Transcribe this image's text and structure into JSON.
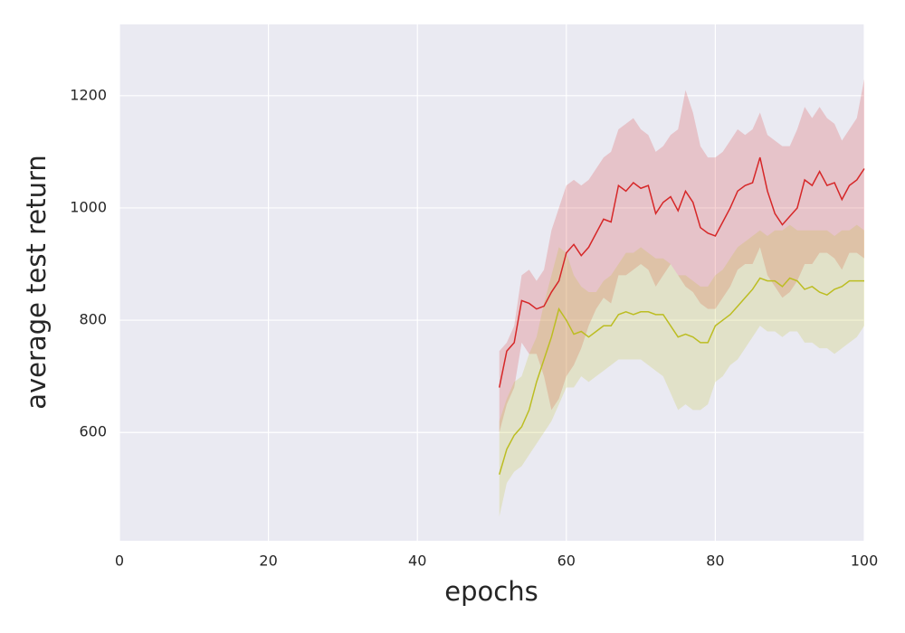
{
  "chart_data": {
    "type": "line",
    "xlabel": "epochs",
    "ylabel": "average test return",
    "x": [
      51,
      52,
      53,
      54,
      55,
      56,
      57,
      58,
      59,
      60,
      61,
      62,
      63,
      64,
      65,
      66,
      67,
      68,
      69,
      70,
      71,
      72,
      73,
      74,
      75,
      76,
      77,
      78,
      79,
      80,
      81,
      82,
      83,
      84,
      85,
      86,
      87,
      88,
      89,
      90,
      91,
      92,
      93,
      94,
      95,
      96,
      97,
      98,
      99,
      100
    ],
    "series": [
      {
        "color": "#d62728",
        "band_opacity": 0.2,
        "values": [
          680,
          745,
          760,
          835,
          830,
          820,
          825,
          850,
          870,
          920,
          935,
          915,
          930,
          955,
          980,
          975,
          1040,
          1030,
          1045,
          1035,
          1040,
          990,
          1010,
          1020,
          995,
          1030,
          1010,
          965,
          955,
          950,
          975,
          1000,
          1030,
          1040,
          1045,
          1090,
          1030,
          990,
          970,
          985,
          1000,
          1050,
          1040,
          1065,
          1040,
          1045,
          1015,
          1040,
          1050,
          1070
        ],
        "upper": [
          745,
          760,
          790,
          880,
          890,
          870,
          890,
          960,
          1000,
          1040,
          1050,
          1040,
          1050,
          1070,
          1090,
          1100,
          1140,
          1150,
          1160,
          1140,
          1130,
          1100,
          1110,
          1130,
          1140,
          1210,
          1170,
          1110,
          1090,
          1090,
          1100,
          1120,
          1140,
          1130,
          1140,
          1170,
          1130,
          1120,
          1110,
          1110,
          1140,
          1180,
          1160,
          1180,
          1160,
          1150,
          1120,
          1140,
          1160,
          1230
        ],
        "lower": [
          600,
          650,
          680,
          760,
          740,
          740,
          700,
          640,
          660,
          700,
          720,
          750,
          790,
          820,
          840,
          830,
          880,
          880,
          890,
          900,
          890,
          860,
          880,
          900,
          880,
          860,
          850,
          830,
          820,
          820,
          840,
          860,
          890,
          900,
          900,
          930,
          880,
          860,
          840,
          850,
          870,
          900,
          900,
          920,
          920,
          910,
          890,
          920,
          920,
          910
        ]
      },
      {
        "color": "#bcbd22",
        "band_opacity": 0.2,
        "values": [
          525,
          570,
          595,
          610,
          640,
          690,
          730,
          770,
          820,
          800,
          775,
          780,
          770,
          780,
          790,
          790,
          810,
          815,
          810,
          815,
          815,
          810,
          810,
          790,
          770,
          775,
          770,
          760,
          760,
          790,
          800,
          810,
          825,
          840,
          855,
          875,
          870,
          870,
          860,
          875,
          870,
          855,
          860,
          850,
          845,
          855,
          860,
          870,
          870,
          870
        ],
        "upper": [
          620,
          660,
          690,
          700,
          740,
          770,
          830,
          880,
          930,
          920,
          880,
          860,
          850,
          850,
          870,
          880,
          900,
          920,
          920,
          930,
          920,
          910,
          910,
          900,
          880,
          880,
          870,
          860,
          860,
          880,
          890,
          910,
          930,
          940,
          950,
          960,
          950,
          960,
          960,
          970,
          960,
          960,
          960,
          960,
          960,
          950,
          960,
          960,
          970,
          960
        ],
        "lower": [
          450,
          510,
          530,
          540,
          560,
          580,
          600,
          620,
          650,
          680,
          680,
          700,
          690,
          700,
          710,
          720,
          730,
          730,
          730,
          730,
          720,
          710,
          700,
          670,
          640,
          650,
          640,
          640,
          650,
          690,
          700,
          720,
          730,
          750,
          770,
          790,
          780,
          780,
          770,
          780,
          780,
          760,
          760,
          750,
          750,
          740,
          750,
          760,
          770,
          790
        ]
      }
    ],
    "xlim": [
      0,
      100
    ],
    "xticks": [
      0,
      20,
      40,
      60,
      80,
      100
    ],
    "ylim": [
      407,
      1327
    ],
    "yticks": [
      600,
      800,
      1000,
      1200
    ],
    "grid": true
  }
}
